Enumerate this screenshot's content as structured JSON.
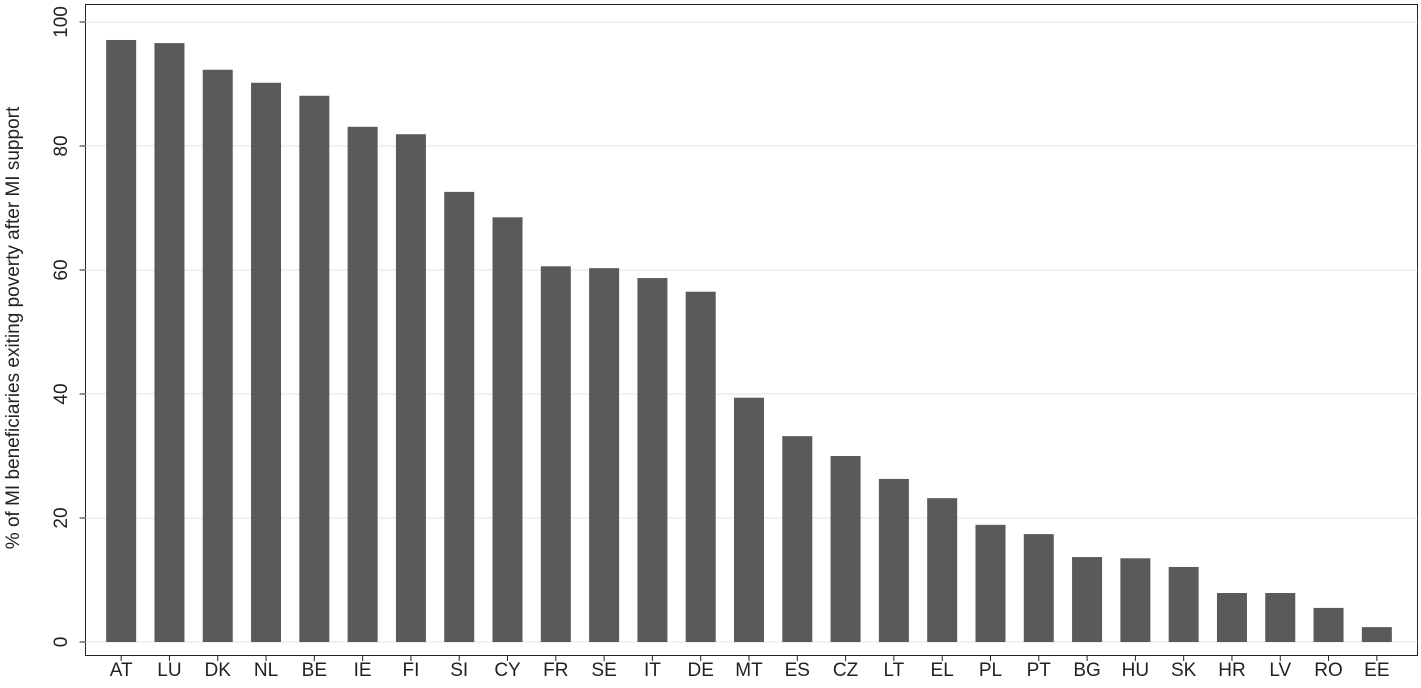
{
  "chart_data": {
    "type": "bar",
    "y_label": "% of MI beneficiaries exiting poverty after MI support",
    "categories": [
      "AT",
      "LU",
      "DK",
      "NL",
      "BE",
      "IE",
      "FI",
      "SI",
      "CY",
      "FR",
      "SE",
      "IT",
      "DE",
      "MT",
      "ES",
      "CZ",
      "LT",
      "EL",
      "PL",
      "PT",
      "BG",
      "HU",
      "SK",
      "HR",
      "LV",
      "RO",
      "EE"
    ],
    "values": [
      97.1,
      96.6,
      92.3,
      90.2,
      88.1,
      83.1,
      81.9,
      72.6,
      68.5,
      60.6,
      60.3,
      58.7,
      56.5,
      39.4,
      33.2,
      30.0,
      26.3,
      23.2,
      18.9,
      17.4,
      13.7,
      13.5,
      12.1,
      7.9,
      7.9,
      5.5,
      2.4
    ],
    "color": "#5a5a5a",
    "ylim": [
      0,
      100
    ],
    "yticks": [
      0,
      20,
      40,
      60,
      80,
      100
    ],
    "grid": true
  }
}
